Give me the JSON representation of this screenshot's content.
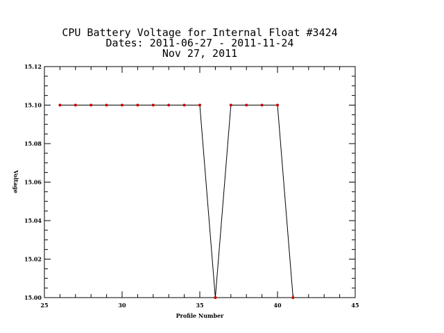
{
  "chart_data": {
    "type": "line",
    "title_lines": [
      "CPU Battery Voltage for Internal Float #3424",
      "Dates:  2011-06-27 -  2011-11-24",
      "Nov 27, 2011"
    ],
    "xlabel": "Profile Number",
    "ylabel": "Voltage",
    "xlim": [
      25,
      45
    ],
    "ylim": [
      15.0,
      15.12
    ],
    "x_ticks": [
      25,
      30,
      35,
      40,
      45
    ],
    "x_tick_labels": [
      "25",
      "30",
      "35",
      "40",
      "45"
    ],
    "y_ticks": [
      15.0,
      15.02,
      15.04,
      15.06,
      15.08,
      15.1,
      15.12
    ],
    "y_tick_labels": [
      "15.00",
      "15.02",
      "15.04",
      "15.06",
      "15.08",
      "15.10",
      "15.12"
    ],
    "grid": false,
    "series": [
      {
        "x": [
          26,
          27,
          28,
          29,
          30,
          31,
          32,
          33,
          34,
          35,
          36,
          37,
          38,
          39,
          40,
          41
        ],
        "y": [
          15.1,
          15.1,
          15.1,
          15.1,
          15.1,
          15.1,
          15.1,
          15.1,
          15.1,
          15.1,
          15.0,
          15.1,
          15.1,
          15.1,
          15.1,
          15.0
        ],
        "line_color": "#000000",
        "marker_color": "#cc0000"
      }
    ]
  }
}
